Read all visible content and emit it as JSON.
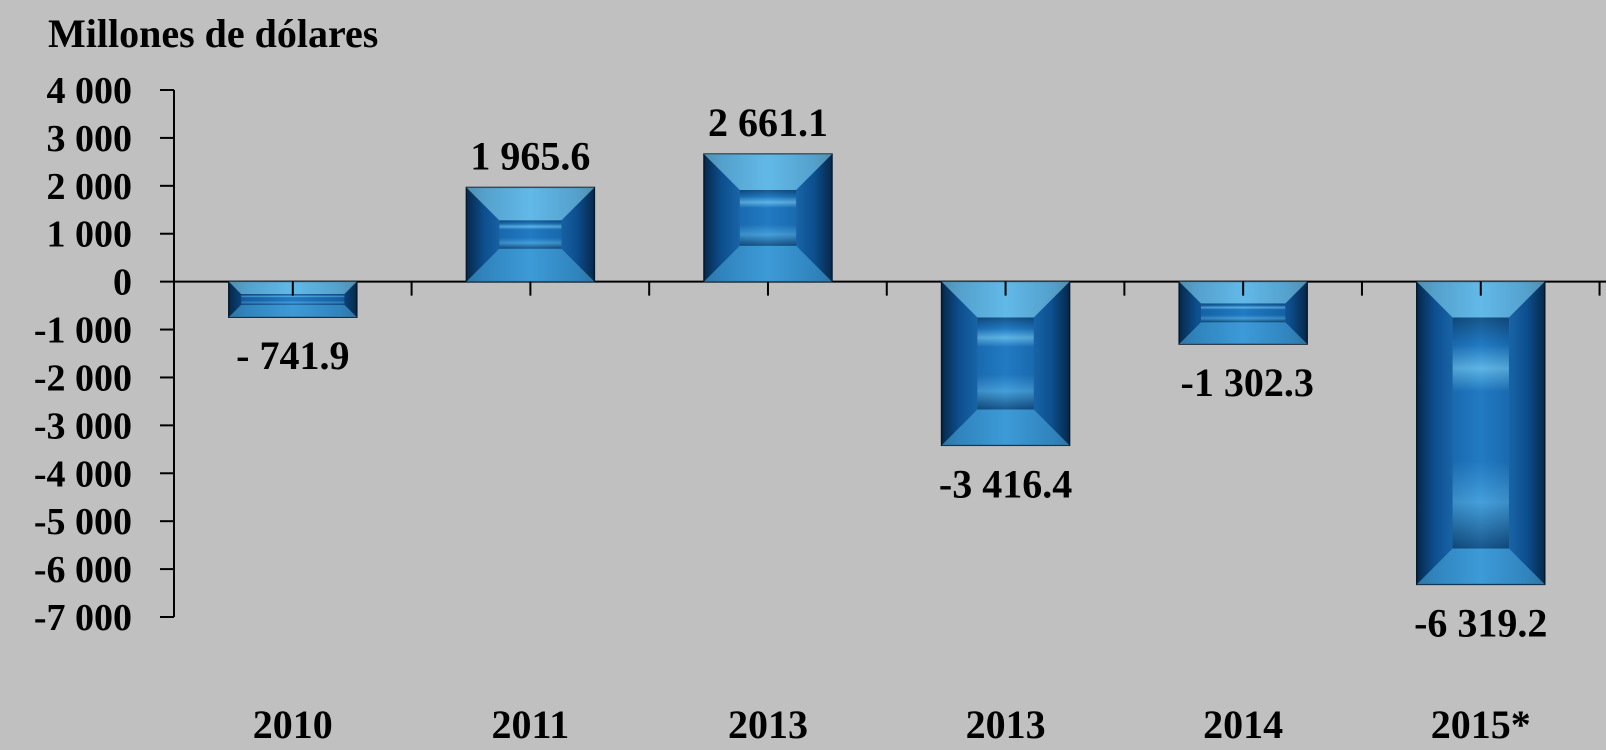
{
  "chart_data": {
    "type": "bar",
    "ylabel": "Millones de dólares",
    "xlabel": "",
    "title": "",
    "categories": [
      "2010",
      "2011",
      "2013",
      "2013",
      "2014",
      "2015*"
    ],
    "values": [
      -741.9,
      1965.6,
      2661.1,
      -3416.4,
      -1302.3,
      -6319.2
    ],
    "data_labels": [
      "- 741.9",
      "1 965.6",
      "2 661.1",
      "-3 416.4",
      "-1 302.3",
      "-6 319.2"
    ],
    "ylim": [
      -7000,
      4000
    ],
    "yticks": [
      4000,
      3000,
      2000,
      1000,
      0,
      -1000,
      -2000,
      -3000,
      -4000,
      -5000,
      -6000,
      -7000
    ],
    "ytick_labels": [
      "4 000",
      "3 000",
      "2 000",
      "1 000",
      "0",
      "-1 000",
      "-2 000",
      "-3 000",
      "-4 000",
      "-5 000",
      "-6 000",
      "-7 000"
    ],
    "grid": false,
    "legend": "none",
    "colors": {
      "bar": "#1a6fb8",
      "bar_dark": "#06284a",
      "bar_light": "#8fe3ff",
      "background": "#c0c0c0",
      "axis": "#000000"
    }
  }
}
